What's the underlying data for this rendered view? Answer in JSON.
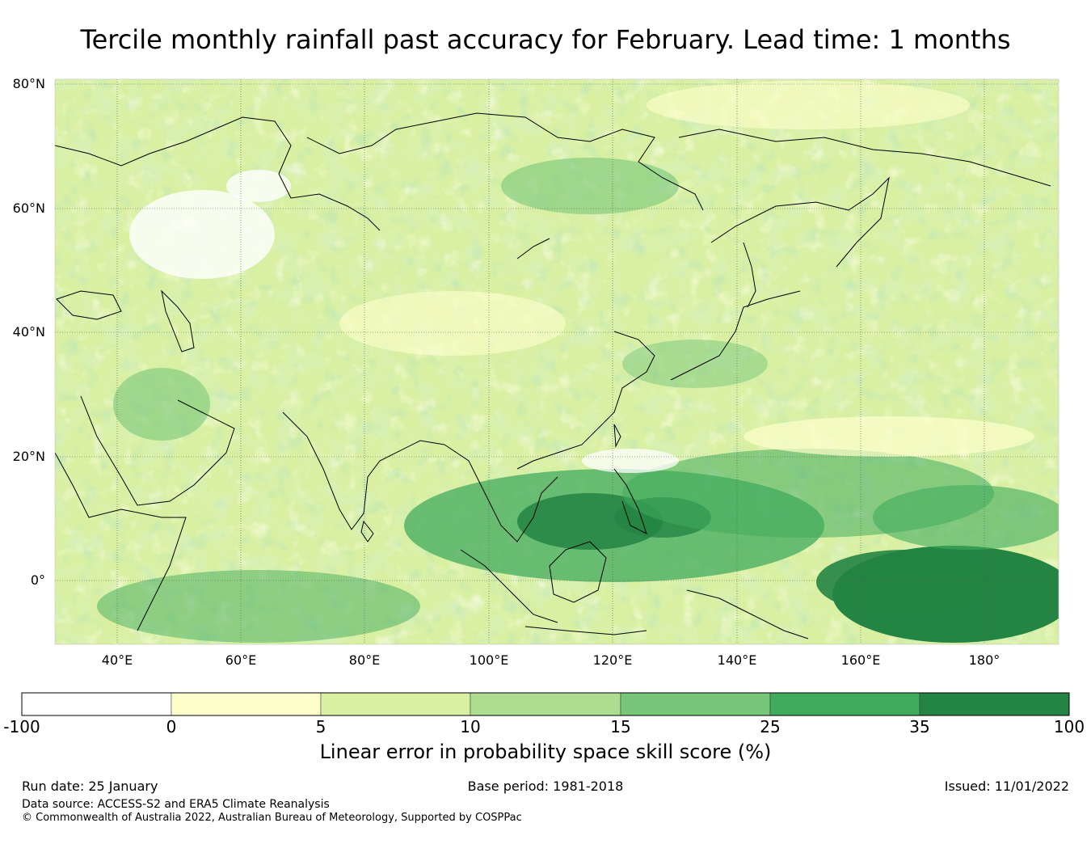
{
  "title": "Tercile monthly rainfall past accuracy for February. Lead time: 1 months",
  "map": {
    "lat_labels": [
      "80°N",
      "60°N",
      "40°N",
      "20°N",
      "0°"
    ],
    "lon_labels": [
      "40°E",
      "60°E",
      "80°E",
      "100°E",
      "120°E",
      "140°E",
      "160°E",
      "180°"
    ],
    "lon_range": [
      30,
      192
    ],
    "lat_range": [
      -10,
      81
    ],
    "gridlines": true
  },
  "colorbar": {
    "ticks": [
      "-100",
      "0",
      "5",
      "10",
      "15",
      "25",
      "35",
      "100"
    ],
    "colors": [
      "#ffffff",
      "#ffffcc",
      "#d9f0a3",
      "#addd8e",
      "#78c679",
      "#41ab5d",
      "#238443"
    ],
    "label": "Linear error in probability space skill score (%)"
  },
  "footer": {
    "run_date": "Run date: 25 January",
    "base_period": "Base period: 1981-2018",
    "issued": "Issued: 11/01/2022",
    "data_source": "Data source: ACCESS-S2 and ERA5 Climate Reanalysis",
    "copyright": "© Commonwealth of Australia 2022, Australian Bureau of Meteorology, Supported by COSPPac"
  }
}
